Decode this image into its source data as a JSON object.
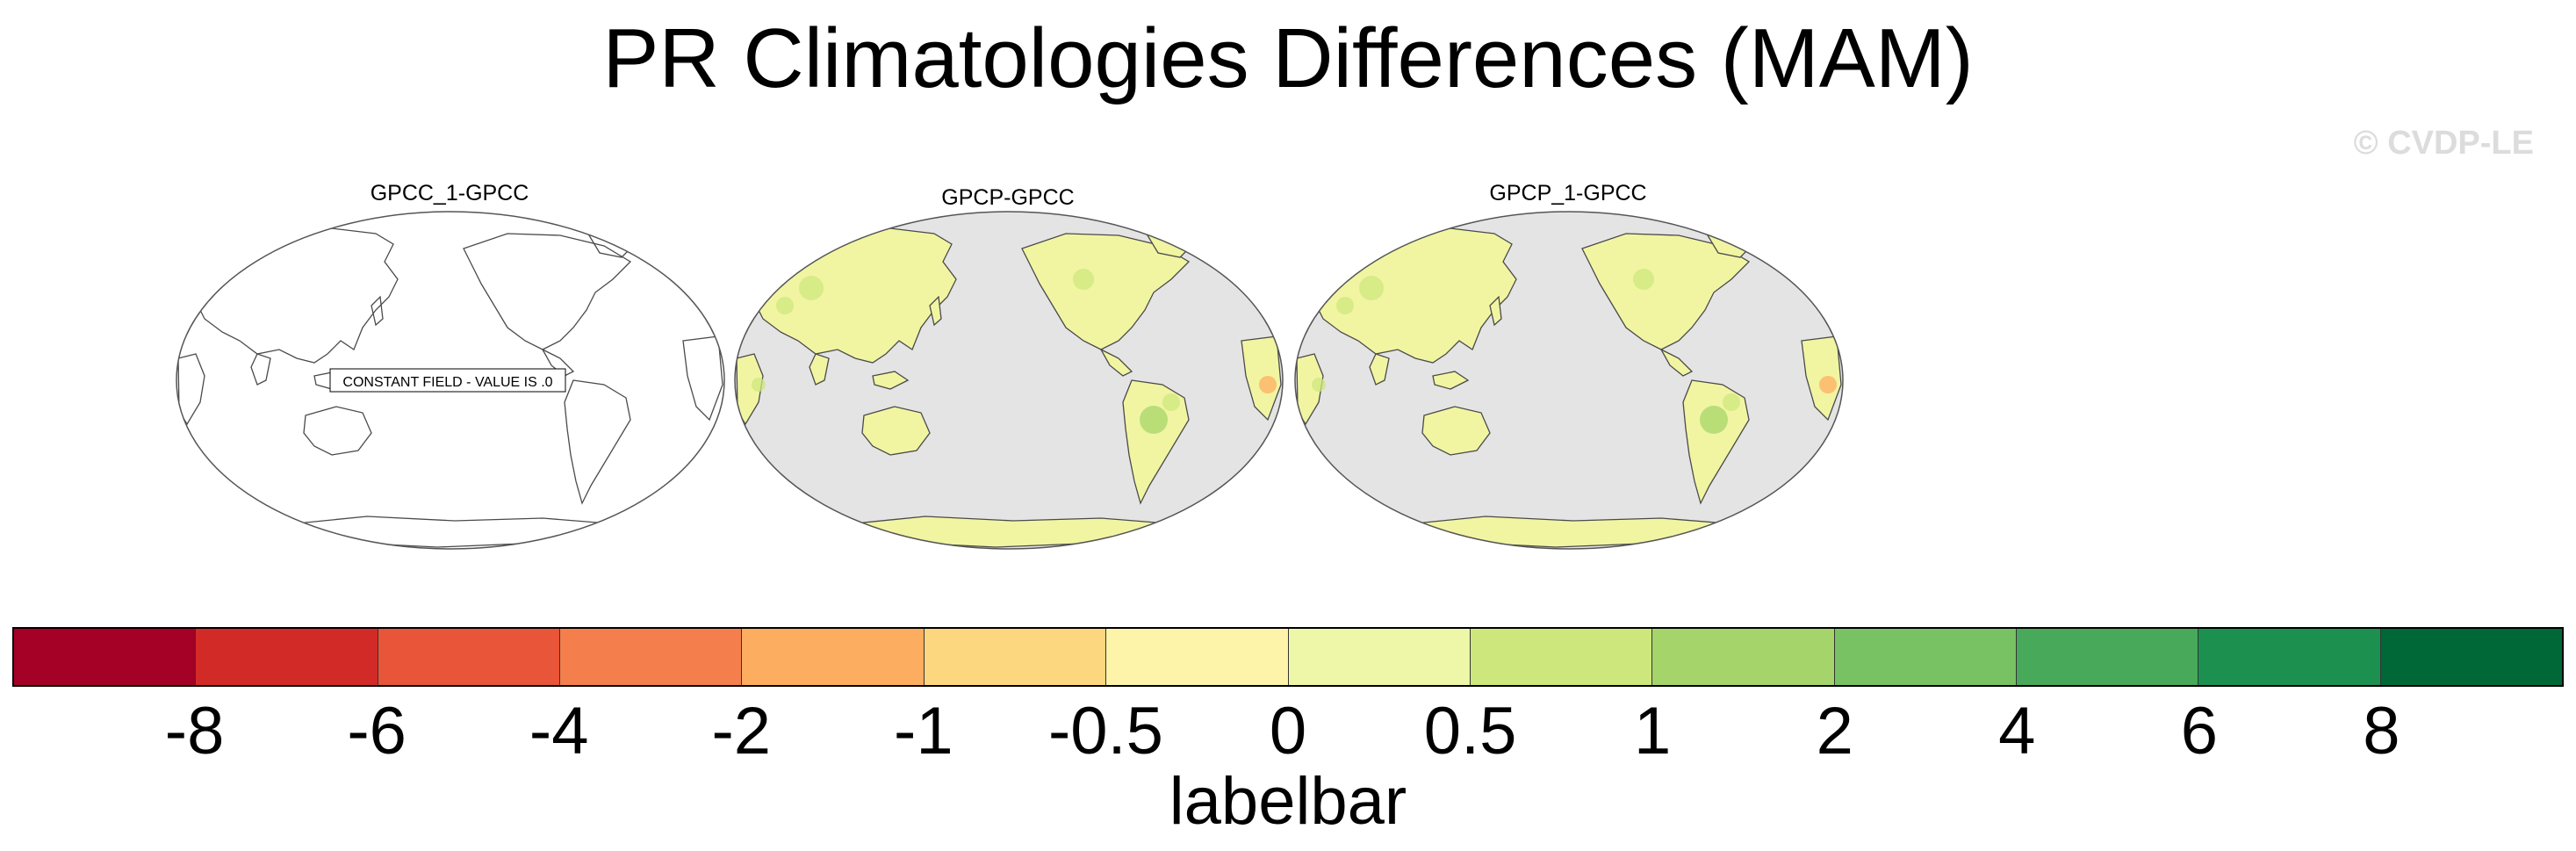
{
  "title": "PR Climatologies Differences (MAM)",
  "watermark": "© CVDP-LE",
  "panels": [
    {
      "title": "GPCC_1-GPCC",
      "note": "CONSTANT FIELD - VALUE IS .0",
      "filled": false
    },
    {
      "title": "GPCP-GPCC",
      "filled": true
    },
    {
      "title": "GPCP_1-GPCC",
      "filled": true
    }
  ],
  "colorbar": {
    "label": "labelbar",
    "colors": [
      "#a50026",
      "#d22b27",
      "#e85538",
      "#f57e4d",
      "#fdad60",
      "#fdd680",
      "#fdf3a9",
      "#eef7a7",
      "#cde77c",
      "#a5d56a",
      "#78c264",
      "#48a95a",
      "#1b904f",
      "#006837"
    ],
    "ticks": [
      "-8",
      "-6",
      "-4",
      "-2",
      "-1",
      "-0.5",
      "0",
      "0.5",
      "1",
      "2",
      "4",
      "6",
      "8"
    ]
  },
  "colors": {
    "ocean_missing": "#e4e4e4",
    "land_fill": "#f1f5a2",
    "coastline": "#4a4a4a"
  }
}
